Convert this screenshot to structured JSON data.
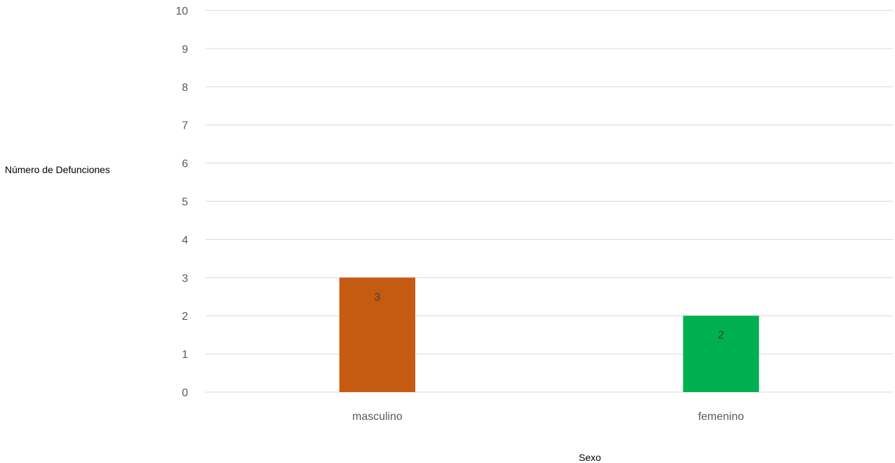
{
  "chart_data": {
    "type": "bar",
    "categories": [
      "masculino",
      "femenino"
    ],
    "values": [
      3,
      2
    ],
    "colors": [
      "#C55A11",
      "#00B050"
    ],
    "xlabel": "Sexo",
    "ylabel": "Número de Defunciones",
    "ylim": [
      0,
      10
    ],
    "yticks": [
      0,
      1,
      2,
      3,
      4,
      5,
      6,
      7,
      8,
      9,
      10
    ],
    "data_labels": [
      "3",
      "2"
    ],
    "grid": true,
    "legend": "none",
    "gridline_color": "#D9D9D9"
  }
}
